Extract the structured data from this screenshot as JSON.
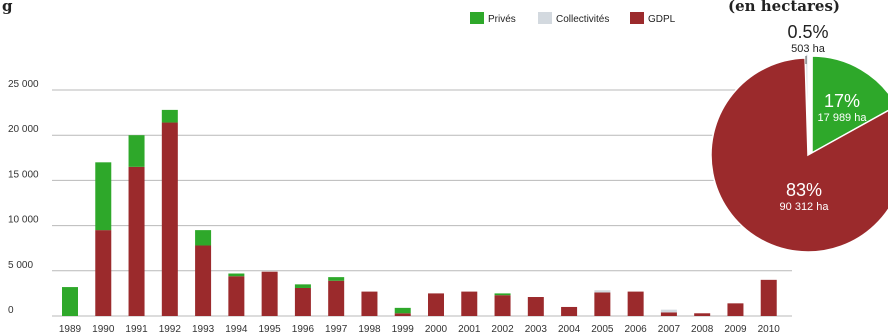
{
  "header": {
    "title_fragment": "g",
    "title_fragment_right": "(en hectares)"
  },
  "legend": [
    {
      "label": "Privés",
      "color": "#2ea82a"
    },
    {
      "label": "Collectivités",
      "color": "#d3d9df"
    },
    {
      "label": "GDPL",
      "color": "#9b2a2c"
    }
  ],
  "chart_data": [
    {
      "type": "bar",
      "stacked": true,
      "categories": [
        "1989",
        "1990",
        "1991",
        "1992",
        "1993",
        "1994",
        "1995",
        "1996",
        "1997",
        "1998",
        "1999",
        "2000",
        "2001",
        "2002",
        "2003",
        "2004",
        "2005",
        "2006",
        "2007",
        "2008",
        "2009",
        "2010"
      ],
      "series": [
        {
          "name": "GDPL",
          "color": "#9b2a2c",
          "values": [
            0,
            9500,
            16500,
            21400,
            7800,
            4400,
            4900,
            3100,
            3900,
            2700,
            300,
            2500,
            2700,
            2300,
            2100,
            1000,
            2600,
            2700,
            400,
            300,
            1400,
            4000
          ]
        },
        {
          "name": "Privés",
          "color": "#2ea82a",
          "values": [
            3200,
            7500,
            3500,
            1400,
            1700,
            300,
            0,
            400,
            400,
            0,
            600,
            0,
            0,
            200,
            0,
            0,
            0,
            0,
            0,
            0,
            0,
            0
          ]
        },
        {
          "name": "Collectivités",
          "color": "#d3d9df",
          "values": [
            0,
            0,
            0,
            0,
            0,
            0,
            0,
            0,
            0,
            0,
            0,
            0,
            0,
            0,
            0,
            0,
            250,
            0,
            300,
            0,
            0,
            0
          ]
        }
      ],
      "ylim": [
        0,
        25000
      ],
      "yticks": [
        0,
        5000,
        10000,
        15000,
        20000,
        25000
      ],
      "ytick_labels": [
        "0",
        "5 000",
        "10 000",
        "15 000",
        "20 000",
        "25 000"
      ],
      "grid": true
    },
    {
      "type": "pie",
      "slices": [
        {
          "name": "GDPL",
          "percent": 83,
          "value_label": "83%",
          "area_label": "90 312 ha",
          "color": "#9b2a2c"
        },
        {
          "name": "Privés",
          "percent": 17,
          "value_label": "17%",
          "area_label": "17 989 ha",
          "color": "#2ea82a"
        },
        {
          "name": "Collectivités",
          "percent": 0.5,
          "value_label": "0.5%",
          "area_label": "503 ha",
          "color": "#d3d9df"
        }
      ]
    }
  ]
}
